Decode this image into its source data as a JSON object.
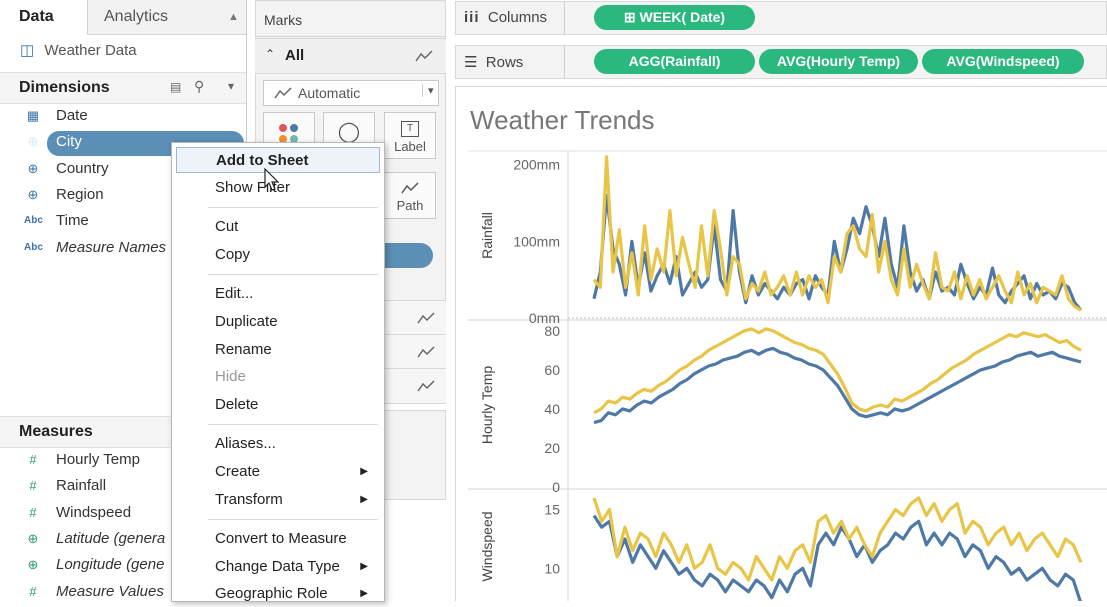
{
  "tabs": {
    "data": "Data",
    "analytics": "Analytics"
  },
  "datasource": "Weather Data",
  "dimensions": {
    "title": "Dimensions",
    "items": [
      {
        "icon": "calendar-icon",
        "label": "Date"
      },
      {
        "icon": "globe-icon",
        "label": "City"
      },
      {
        "icon": "globe-icon",
        "label": "Country"
      },
      {
        "icon": "globe-icon",
        "label": "Region"
      },
      {
        "icon": "abc-icon",
        "label": "Time",
        "glyph": "Abc"
      },
      {
        "icon": "abc-icon",
        "label": "Measure Names",
        "glyph": "Abc"
      }
    ]
  },
  "measures": {
    "title": "Measures",
    "items": [
      {
        "icon": "hash-icon",
        "label": "Hourly Temp",
        "glyph": "#"
      },
      {
        "icon": "hash-icon",
        "label": "Rainfall",
        "glyph": "#"
      },
      {
        "icon": "hash-icon",
        "label": "Windspeed",
        "glyph": "#"
      },
      {
        "icon": "globe-icon",
        "label": "Latitude (genera"
      },
      {
        "icon": "globe-icon",
        "label": "Longitude (gene"
      },
      {
        "icon": "hash-icon",
        "label": "Measure Values",
        "glyph": "#"
      }
    ]
  },
  "marks": {
    "title": "Marks",
    "all": "All",
    "type": "Automatic",
    "buttons": {
      "label": "Label",
      "path": "Path"
    }
  },
  "shelves": {
    "columns_label": "Columns",
    "rows_label": "Rows",
    "columns_pills": [
      "WEEK( Date)"
    ],
    "rows_pills": [
      "AGG(Rainfall)",
      "AVG(Hourly Temp)",
      "AVG(Windspeed)"
    ]
  },
  "context_menu": {
    "items": [
      {
        "label": "Add to Sheet",
        "highlight": true
      },
      {
        "label": "Show Filter"
      },
      {
        "sep": true
      },
      {
        "label": "Cut"
      },
      {
        "label": "Copy"
      },
      {
        "sep": true
      },
      {
        "label": "Edit..."
      },
      {
        "label": "Duplicate"
      },
      {
        "label": "Rename"
      },
      {
        "label": "Hide",
        "disabled": true
      },
      {
        "label": "Delete"
      },
      {
        "sep": true
      },
      {
        "label": "Aliases..."
      },
      {
        "label": "Create",
        "submenu": true
      },
      {
        "label": "Transform",
        "submenu": true
      },
      {
        "sep": true
      },
      {
        "label": "Convert to Measure"
      },
      {
        "label": "Change Data Type",
        "submenu": true
      },
      {
        "label": "Geographic Role",
        "submenu": true
      }
    ]
  },
  "chart": {
    "title": "Weather Trends",
    "colors": {
      "blue": "#4e79a7",
      "yellow": "#e8c547"
    }
  },
  "chart_data": [
    {
      "type": "line",
      "ylabel": "Rainfall",
      "ticks": [
        "0mm",
        "100mm",
        "200mm"
      ],
      "tick_values": [
        0,
        100,
        200
      ],
      "ylim": [
        0,
        215
      ],
      "series": [
        {
          "color": "#4e79a7",
          "values": [
            25,
            60,
            160,
            90,
            70,
            30,
            100,
            40,
            85,
            35,
            55,
            70,
            45,
            80,
            30,
            45,
            60,
            40,
            50,
            120,
            50,
            35,
            140,
            60,
            20,
            55,
            30,
            45,
            35,
            25,
            40,
            30,
            45,
            50,
            25,
            55,
            40,
            30,
            100,
            60,
            90,
            130,
            110,
            145,
            120,
            80,
            130,
            70,
            40,
            120,
            60,
            35,
            50,
            25,
            60,
            35,
            40,
            30,
            70,
            45,
            25,
            40,
            30,
            65,
            30,
            20,
            35,
            45,
            55,
            25,
            45,
            30,
            35,
            25,
            45,
            40,
            20,
            10
          ]
        },
        {
          "color": "#e8c547",
          "values": [
            50,
            40,
            210,
            60,
            115,
            40,
            85,
            30,
            120,
            50,
            90,
            60,
            140,
            55,
            105,
            70,
            40,
            120,
            55,
            140,
            90,
            30,
            80,
            70,
            25,
            45,
            35,
            60,
            30,
            40,
            55,
            30,
            60,
            30,
            55,
            40,
            50,
            20,
            80,
            60,
            110,
            120,
            90,
            80,
            135,
            60,
            100,
            50,
            30,
            90,
            40,
            70,
            45,
            25,
            85,
            40,
            35,
            60,
            25,
            55,
            30,
            50,
            25,
            40,
            55,
            35,
            20,
            60,
            30,
            45,
            20,
            40,
            35,
            30,
            55,
            25,
            15,
            10
          ]
        }
      ]
    },
    {
      "type": "line",
      "ylabel": "Hourly Temp",
      "ticks": [
        "0",
        "20",
        "40",
        "60",
        "80"
      ],
      "tick_values": [
        0,
        20,
        40,
        60,
        80
      ],
      "ylim": [
        0,
        84
      ],
      "series": [
        {
          "color": "#4e79a7",
          "values": [
            33,
            34,
            38,
            37,
            40,
            39,
            42,
            44,
            43,
            46,
            48,
            50,
            53,
            55,
            58,
            60,
            62,
            63,
            65,
            66,
            67,
            69,
            70,
            68,
            70,
            71,
            69,
            68,
            66,
            65,
            63,
            62,
            60,
            56,
            52,
            46,
            40,
            37,
            36,
            37,
            38,
            37,
            40,
            39,
            40,
            42,
            44,
            46,
            48,
            50,
            52,
            54,
            56,
            58,
            60,
            61,
            62,
            64,
            65,
            67,
            68,
            69,
            67,
            68,
            69,
            67,
            66,
            65,
            64
          ]
        },
        {
          "color": "#e8c547",
          "values": [
            38,
            40,
            44,
            43,
            46,
            45,
            48,
            50,
            49,
            52,
            54,
            57,
            60,
            62,
            65,
            67,
            70,
            72,
            74,
            76,
            78,
            80,
            81,
            79,
            81,
            80,
            78,
            76,
            74,
            73,
            71,
            70,
            68,
            63,
            58,
            51,
            43,
            40,
            39,
            41,
            42,
            41,
            45,
            44,
            46,
            48,
            50,
            53,
            55,
            58,
            61,
            63,
            65,
            68,
            70,
            72,
            74,
            76,
            78,
            77,
            79,
            78,
            77,
            78,
            76,
            74,
            75,
            72,
            70
          ]
        }
      ]
    },
    {
      "type": "line",
      "ylabel": "Windspeed",
      "ticks": [
        "10",
        "15"
      ],
      "tick_values": [
        10,
        15
      ],
      "ylim": [
        5,
        16.5
      ],
      "series": [
        {
          "color": "#4e79a7",
          "values": [
            14.5,
            13.5,
            14,
            11,
            12.5,
            10.5,
            12,
            11,
            10,
            11.5,
            10.5,
            9.5,
            10,
            9,
            8.5,
            9.5,
            9,
            8,
            9,
            8.5,
            8,
            9,
            8.5,
            7.5,
            9,
            8,
            9.5,
            10,
            8.5,
            12,
            13,
            12,
            13.5,
            12.5,
            11,
            12,
            10.5,
            11.5,
            12,
            13,
            12.5,
            13.5,
            14,
            12,
            13,
            12,
            13,
            12.5,
            11,
            12,
            11.5,
            10,
            11,
            10.5,
            9.5,
            10,
            9,
            9.5,
            10,
            9,
            8.5,
            9.5,
            9,
            7
          ]
        },
        {
          "color": "#e8c547",
          "values": [
            16,
            14,
            15,
            11,
            13.5,
            11.5,
            13,
            12.5,
            11,
            13,
            12,
            10.5,
            12,
            10,
            10.5,
            12,
            10,
            9.5,
            10.5,
            10,
            9,
            11,
            10,
            9,
            11,
            10,
            11.5,
            12,
            10.5,
            14,
            14.5,
            13,
            14,
            12.5,
            13.5,
            12,
            11,
            13,
            14,
            15,
            14.5,
            15.5,
            16,
            14.5,
            15.5,
            14,
            15,
            15.5,
            13,
            14,
            13.5,
            12,
            13,
            13.5,
            12,
            13,
            11.5,
            12.5,
            13,
            12,
            11,
            12.5,
            12,
            10.5
          ]
        }
      ]
    }
  ]
}
